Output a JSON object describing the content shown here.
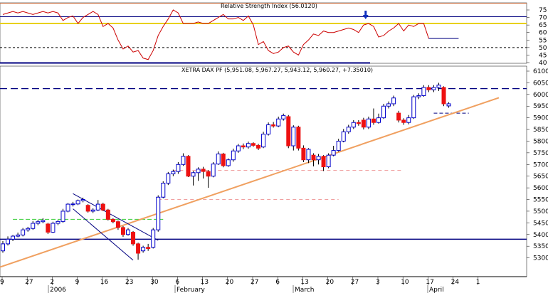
{
  "chart_data": [
    {
      "type": "line",
      "title": "Relative Strength Index (56.0120)",
      "ylim": [
        40,
        75
      ],
      "y_ticks": [
        40,
        45,
        50,
        55,
        60,
        65,
        70,
        75
      ],
      "levels": {
        "upper": 66,
        "lower": 50,
        "blue": 70.5
      },
      "arrow_at_index": 69,
      "values": [
        72,
        73,
        74,
        73,
        74,
        73,
        72,
        73,
        74,
        73,
        74,
        73,
        68,
        70,
        71,
        66,
        70,
        72,
        74,
        72,
        64,
        66,
        63,
        55,
        49,
        51,
        47,
        48,
        43,
        42,
        48,
        58,
        64,
        69,
        75,
        73,
        66,
        66,
        66,
        67,
        66,
        66,
        68,
        70,
        72,
        69,
        69,
        70,
        68,
        71,
        65,
        52,
        54,
        48,
        46,
        47,
        50,
        51,
        47,
        45,
        52,
        55,
        59,
        58,
        61,
        60,
        60,
        61,
        62,
        63,
        62,
        60,
        65,
        66,
        64,
        57,
        58,
        61,
        63,
        66,
        61,
        65,
        64,
        66,
        66,
        56
      ],
      "colors": {
        "line": "#cc0000",
        "upper": "#e8d000",
        "lower": "#000000",
        "blue": "#000080"
      },
      "grid": false
    },
    {
      "type": "candlestick",
      "title": "XETRA DAX PF (5,951.08, 5,967.27, 5,943.12, 5,960.27, +7.35010)",
      "ylim": [
        5250,
        6100
      ],
      "y_ticks": [
        5300,
        5350,
        5400,
        5450,
        5500,
        5550,
        5600,
        5650,
        5700,
        5750,
        5800,
        5850,
        5900,
        5950,
        6000,
        6050,
        6100
      ],
      "x_ticks": [
        "9",
        "27",
        "2",
        "9",
        "16",
        "23",
        "30",
        "6",
        "13",
        "20",
        "27",
        "6",
        "13",
        "20",
        "27",
        "3",
        "10",
        "17",
        "24",
        "1"
      ],
      "month_labels": [
        "2006",
        "February",
        "March",
        "April"
      ],
      "candles": [
        {
          "o": 5330,
          "c": 5360,
          "h": 5372,
          "l": 5322
        },
        {
          "o": 5360,
          "c": 5380,
          "h": 5392,
          "l": 5353
        },
        {
          "o": 5380,
          "c": 5393,
          "h": 5398,
          "l": 5372
        },
        {
          "o": 5393,
          "c": 5398,
          "h": 5408,
          "l": 5388
        },
        {
          "o": 5398,
          "c": 5420,
          "h": 5428,
          "l": 5392
        },
        {
          "o": 5420,
          "c": 5426,
          "h": 5433,
          "l": 5412
        },
        {
          "o": 5426,
          "c": 5448,
          "h": 5458,
          "l": 5420
        },
        {
          "o": 5448,
          "c": 5455,
          "h": 5463,
          "l": 5440
        },
        {
          "o": 5455,
          "c": 5460,
          "h": 5470,
          "l": 5448
        },
        {
          "o": 5445,
          "c": 5410,
          "h": 5450,
          "l": 5402
        },
        {
          "o": 5410,
          "c": 5448,
          "h": 5455,
          "l": 5406
        },
        {
          "o": 5448,
          "c": 5456,
          "h": 5462,
          "l": 5440
        },
        {
          "o": 5456,
          "c": 5500,
          "h": 5510,
          "l": 5450
        },
        {
          "o": 5500,
          "c": 5530,
          "h": 5535,
          "l": 5495
        },
        {
          "o": 5530,
          "c": 5531,
          "h": 5540,
          "l": 5520
        },
        {
          "o": 5531,
          "c": 5545,
          "h": 5550,
          "l": 5526
        },
        {
          "o": 5545,
          "c": 5550,
          "h": 5558,
          "l": 5538
        },
        {
          "o": 5525,
          "c": 5500,
          "h": 5530,
          "l": 5494
        },
        {
          "o": 5500,
          "c": 5505,
          "h": 5512,
          "l": 5492
        },
        {
          "o": 5505,
          "c": 5530,
          "h": 5548,
          "l": 5500
        },
        {
          "o": 5530,
          "c": 5505,
          "h": 5536,
          "l": 5500
        },
        {
          "o": 5505,
          "c": 5465,
          "h": 5510,
          "l": 5460
        },
        {
          "o": 5465,
          "c": 5455,
          "h": 5470,
          "l": 5448
        },
        {
          "o": 5455,
          "c": 5430,
          "h": 5460,
          "l": 5420
        },
        {
          "o": 5430,
          "c": 5400,
          "h": 5436,
          "l": 5390
        },
        {
          "o": 5400,
          "c": 5420,
          "h": 5428,
          "l": 5395
        },
        {
          "o": 5410,
          "c": 5360,
          "h": 5415,
          "l": 5352
        },
        {
          "o": 5360,
          "c": 5320,
          "h": 5365,
          "l": 5292
        },
        {
          "o": 5330,
          "c": 5345,
          "h": 5352,
          "l": 5322
        },
        {
          "o": 5345,
          "c": 5340,
          "h": 5360,
          "l": 5330
        },
        {
          "o": 5345,
          "c": 5420,
          "h": 5428,
          "l": 5340
        },
        {
          "o": 5420,
          "c": 5560,
          "h": 5568,
          "l": 5412
        },
        {
          "o": 5560,
          "c": 5620,
          "h": 5628,
          "l": 5555
        },
        {
          "o": 5620,
          "c": 5660,
          "h": 5668,
          "l": 5612
        },
        {
          "o": 5660,
          "c": 5670,
          "h": 5678,
          "l": 5650
        },
        {
          "o": 5670,
          "c": 5700,
          "h": 5710,
          "l": 5660
        },
        {
          "o": 5700,
          "c": 5735,
          "h": 5748,
          "l": 5694
        },
        {
          "o": 5735,
          "c": 5650,
          "h": 5740,
          "l": 5646
        },
        {
          "o": 5650,
          "c": 5665,
          "h": 5672,
          "l": 5610
        },
        {
          "o": 5665,
          "c": 5680,
          "h": 5688,
          "l": 5630
        },
        {
          "o": 5680,
          "c": 5670,
          "h": 5690,
          "l": 5640
        },
        {
          "o": 5670,
          "c": 5650,
          "h": 5676,
          "l": 5600
        },
        {
          "o": 5650,
          "c": 5702,
          "h": 5710,
          "l": 5645
        },
        {
          "o": 5702,
          "c": 5745,
          "h": 5756,
          "l": 5698
        },
        {
          "o": 5745,
          "c": 5695,
          "h": 5750,
          "l": 5688
        },
        {
          "o": 5695,
          "c": 5720,
          "h": 5726,
          "l": 5690
        },
        {
          "o": 5720,
          "c": 5758,
          "h": 5768,
          "l": 5712
        },
        {
          "o": 5758,
          "c": 5780,
          "h": 5788,
          "l": 5750
        },
        {
          "o": 5780,
          "c": 5775,
          "h": 5790,
          "l": 5766
        },
        {
          "o": 5775,
          "c": 5790,
          "h": 5798,
          "l": 5768
        },
        {
          "o": 5790,
          "c": 5782,
          "h": 5795,
          "l": 5776
        },
        {
          "o": 5782,
          "c": 5770,
          "h": 5788,
          "l": 5762
        },
        {
          "o": 5775,
          "c": 5830,
          "h": 5840,
          "l": 5770
        },
        {
          "o": 5830,
          "c": 5870,
          "h": 5880,
          "l": 5824
        },
        {
          "o": 5870,
          "c": 5865,
          "h": 5882,
          "l": 5858
        },
        {
          "o": 5865,
          "c": 5895,
          "h": 5905,
          "l": 5860
        },
        {
          "o": 5895,
          "c": 5910,
          "h": 5918,
          "l": 5888
        },
        {
          "o": 5905,
          "c": 5780,
          "h": 5912,
          "l": 5770
        },
        {
          "o": 5780,
          "c": 5860,
          "h": 5868,
          "l": 5760
        },
        {
          "o": 5860,
          "c": 5770,
          "h": 5866,
          "l": 5760
        },
        {
          "o": 5770,
          "c": 5720,
          "h": 5782,
          "l": 5710
        },
        {
          "o": 5720,
          "c": 5765,
          "h": 5770,
          "l": 5706
        },
        {
          "o": 5740,
          "c": 5720,
          "h": 5748,
          "l": 5692
        },
        {
          "o": 5720,
          "c": 5735,
          "h": 5745,
          "l": 5700
        },
        {
          "o": 5735,
          "c": 5690,
          "h": 5740,
          "l": 5672
        },
        {
          "o": 5690,
          "c": 5740,
          "h": 5748,
          "l": 5684
        },
        {
          "o": 5740,
          "c": 5760,
          "h": 5780,
          "l": 5735
        },
        {
          "o": 5760,
          "c": 5800,
          "h": 5810,
          "l": 5755
        },
        {
          "o": 5800,
          "c": 5840,
          "h": 5852,
          "l": 5795
        },
        {
          "o": 5840,
          "c": 5860,
          "h": 5870,
          "l": 5832
        },
        {
          "o": 5860,
          "c": 5880,
          "h": 5890,
          "l": 5852
        },
        {
          "o": 5880,
          "c": 5875,
          "h": 5890,
          "l": 5866
        },
        {
          "o": 5890,
          "c": 5860,
          "h": 5900,
          "l": 5850
        },
        {
          "o": 5860,
          "c": 5895,
          "h": 5905,
          "l": 5852
        },
        {
          "o": 5895,
          "c": 5880,
          "h": 5940,
          "l": 5870
        },
        {
          "o": 5880,
          "c": 5900,
          "h": 5918,
          "l": 5875
        },
        {
          "o": 5900,
          "c": 5950,
          "h": 5960,
          "l": 5895
        },
        {
          "o": 5950,
          "c": 5960,
          "h": 5970,
          "l": 5940
        },
        {
          "o": 5960,
          "c": 5985,
          "h": 5995,
          "l": 5950
        },
        {
          "o": 5920,
          "c": 5890,
          "h": 5930,
          "l": 5880
        },
        {
          "o": 5890,
          "c": 5880,
          "h": 5898,
          "l": 5870
        },
        {
          "o": 5880,
          "c": 5900,
          "h": 5912,
          "l": 5872
        },
        {
          "o": 5900,
          "c": 5990,
          "h": 5998,
          "l": 5895
        },
        {
          "o": 5990,
          "c": 5995,
          "h": 6005,
          "l": 5980
        },
        {
          "o": 5995,
          "c": 6030,
          "h": 6040,
          "l": 5990
        },
        {
          "o": 6030,
          "c": 6020,
          "h": 6040,
          "l": 6010
        },
        {
          "o": 6020,
          "c": 6030,
          "h": 6040,
          "l": 6010
        },
        {
          "o": 6030,
          "c": 6040,
          "h": 6050,
          "l": 6015
        },
        {
          "o": 6030,
          "c": 5960,
          "h": 6035,
          "l": 5950
        },
        {
          "o": 5951,
          "c": 5960,
          "h": 5967,
          "l": 5943
        }
      ],
      "overlays": {
        "support_level": 5380,
        "resistance_level": 6025,
        "trendline": [
          [
            -2,
            5250
          ],
          [
            99,
            5986
          ]
        ],
        "channel_upper": [
          [
            14,
            5575
          ],
          [
            31,
            5375
          ]
        ],
        "channel_lower": [
          [
            14,
            5510
          ],
          [
            26,
            5290
          ]
        ],
        "short_dashed_level": 5920,
        "pink_levels": [
          {
            "y": 5675,
            "from": 34,
            "to": 80
          },
          {
            "y": 5550,
            "from": 31,
            "to": 67
          }
        ],
        "green_level": {
          "y": 5465,
          "from": 2,
          "to": 32
        }
      },
      "colors": {
        "up_border": "#0000cc",
        "down_fill": "#ee1111",
        "trendline": "#f0a060",
        "channel": "#000080",
        "support": "#000080",
        "resistance": "#000080",
        "pink": "#f0a0a0",
        "green": "#33cc33"
      },
      "grid": false
    }
  ]
}
